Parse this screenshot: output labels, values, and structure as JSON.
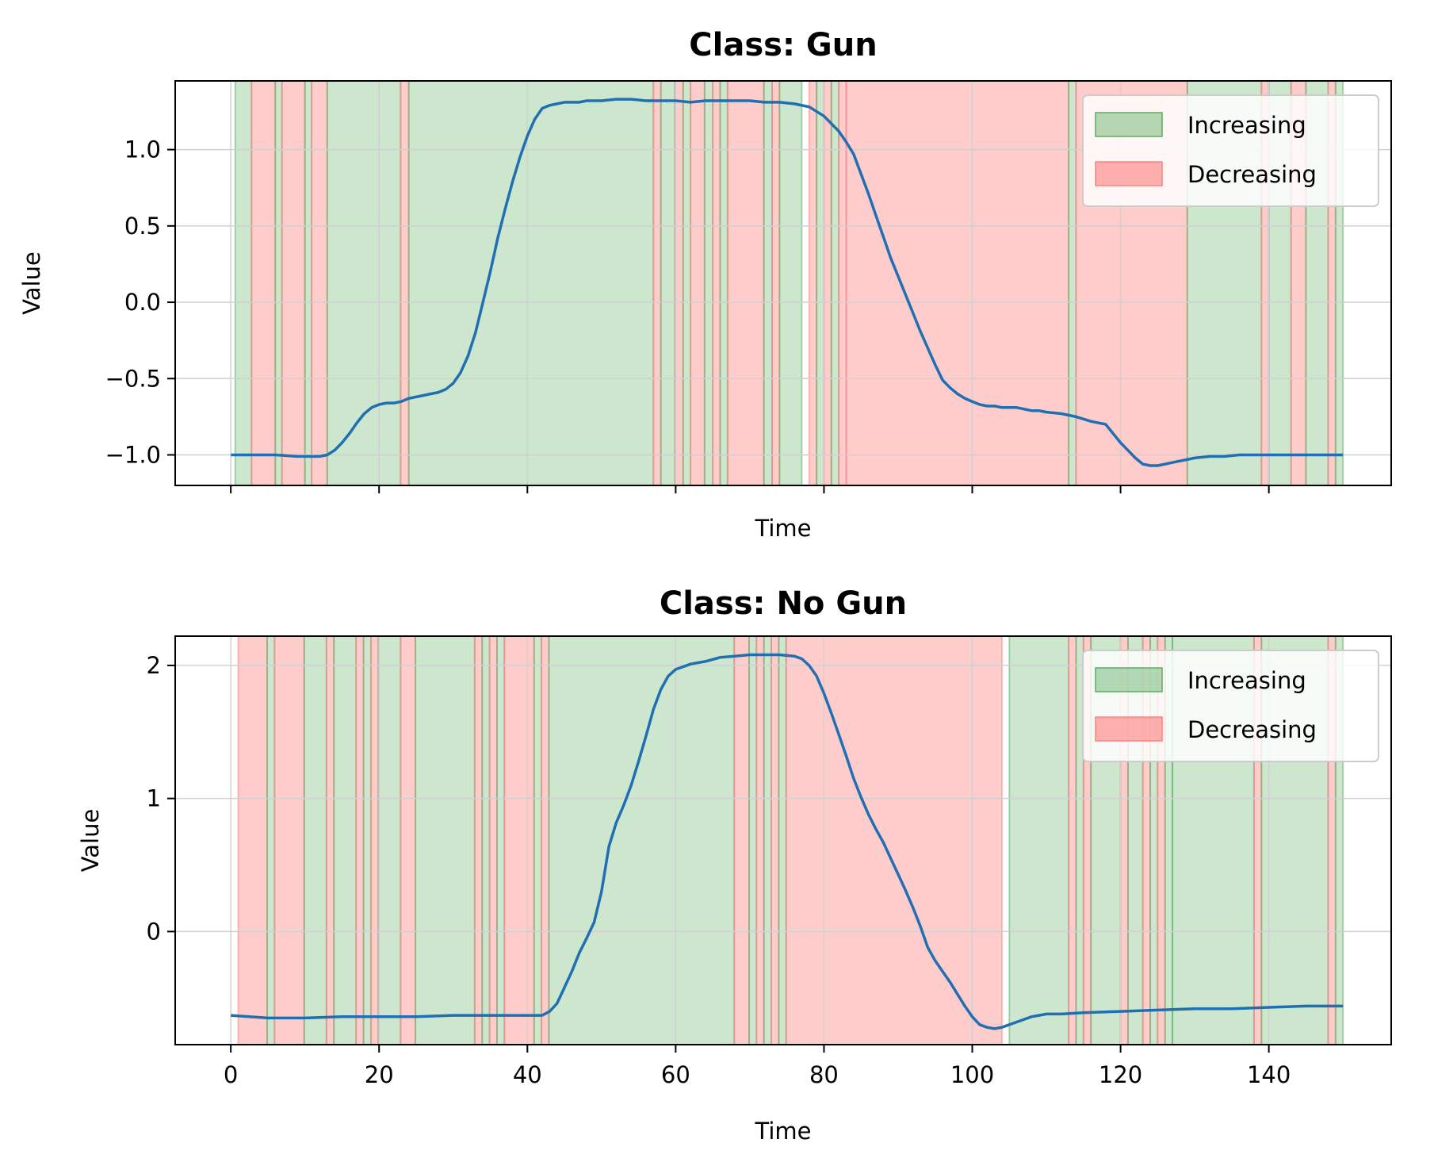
{
  "colors": {
    "increasing": "#5aae61",
    "decreasing": "#ff7f7f",
    "line": "#1f6fb2",
    "grid": "#d0d0d0"
  },
  "chart_data": [
    {
      "type": "line",
      "title": "Class: Gun",
      "xlabel": "Time",
      "ylabel": "Value",
      "xlim": [
        -7.5,
        156.5
      ],
      "ylim": [
        -1.2,
        1.45
      ],
      "xticks": [
        0,
        20,
        40,
        60,
        80,
        100,
        120,
        140
      ],
      "show_xtick_labels": false,
      "yticks": [
        -1.0,
        -0.5,
        0.0,
        0.5,
        1.0
      ],
      "ytick_labels": [
        "−1.0",
        "−0.5",
        "0.0",
        "0.5",
        "1.0"
      ],
      "grid": true,
      "legend": {
        "placement": "top-right",
        "entries": [
          "Increasing",
          "Decreasing"
        ]
      },
      "line": {
        "x": [
          0,
          3,
          6,
          9,
          12,
          13,
          14,
          15,
          16,
          17,
          18,
          19,
          20,
          21,
          22,
          23,
          24,
          25,
          26,
          27,
          28,
          29,
          30,
          31,
          32,
          33,
          34,
          35,
          36,
          37,
          38,
          39,
          40,
          41,
          42,
          43,
          44,
          45,
          46,
          47,
          48,
          49,
          50,
          52,
          54,
          56,
          58,
          60,
          62,
          64,
          66,
          68,
          70,
          72,
          74,
          76,
          78,
          80,
          82,
          83,
          84,
          85,
          86,
          87,
          88,
          89,
          90,
          91,
          92,
          93,
          94,
          95,
          96,
          97,
          98,
          99,
          100,
          101,
          102,
          103,
          104,
          105,
          106,
          107,
          108,
          109,
          110,
          112,
          114,
          116,
          118,
          119,
          120,
          121,
          122,
          123,
          124,
          125,
          126,
          127,
          128,
          129,
          130,
          132,
          134,
          136,
          138,
          140,
          142,
          144,
          146,
          148,
          150
        ],
        "y": [
          -1.0,
          -1.0,
          -1.0,
          -1.01,
          -1.01,
          -1.0,
          -0.97,
          -0.92,
          -0.86,
          -0.79,
          -0.73,
          -0.69,
          -0.67,
          -0.66,
          -0.66,
          -0.65,
          -0.63,
          -0.62,
          -0.61,
          -0.6,
          -0.59,
          -0.57,
          -0.53,
          -0.46,
          -0.35,
          -0.2,
          0.0,
          0.2,
          0.42,
          0.61,
          0.79,
          0.95,
          1.09,
          1.2,
          1.27,
          1.29,
          1.3,
          1.31,
          1.31,
          1.31,
          1.32,
          1.32,
          1.32,
          1.33,
          1.33,
          1.32,
          1.32,
          1.32,
          1.31,
          1.32,
          1.32,
          1.32,
          1.32,
          1.31,
          1.31,
          1.3,
          1.28,
          1.22,
          1.12,
          1.05,
          0.97,
          0.84,
          0.71,
          0.57,
          0.43,
          0.29,
          0.17,
          0.05,
          -0.07,
          -0.19,
          -0.3,
          -0.41,
          -0.51,
          -0.56,
          -0.6,
          -0.63,
          -0.65,
          -0.67,
          -0.68,
          -0.68,
          -0.69,
          -0.69,
          -0.69,
          -0.7,
          -0.71,
          -0.71,
          -0.72,
          -0.73,
          -0.75,
          -0.78,
          -0.8,
          -0.86,
          -0.92,
          -0.97,
          -1.02,
          -1.06,
          -1.07,
          -1.07,
          -1.06,
          -1.05,
          -1.04,
          -1.03,
          -1.02,
          -1.01,
          -1.01,
          -1.0,
          -1.0,
          -1.0,
          -1.0,
          -1.0,
          -1.0,
          -1.0,
          -1.0
        ]
      },
      "regions": [
        {
          "from": 0.6,
          "to": 2.8,
          "trend": "increasing"
        },
        {
          "from": 2.8,
          "to": 6.0,
          "trend": "decreasing"
        },
        {
          "from": 6.0,
          "to": 6.9,
          "trend": "increasing"
        },
        {
          "from": 6.9,
          "to": 10.0,
          "trend": "decreasing"
        },
        {
          "from": 10.0,
          "to": 10.9,
          "trend": "increasing"
        },
        {
          "from": 10.9,
          "to": 13.0,
          "trend": "decreasing"
        },
        {
          "from": 13.0,
          "to": 22.9,
          "trend": "increasing"
        },
        {
          "from": 22.9,
          "to": 24.0,
          "trend": "decreasing"
        },
        {
          "from": 24.0,
          "to": 57.0,
          "trend": "increasing"
        },
        {
          "from": 57.0,
          "to": 58.0,
          "trend": "decreasing"
        },
        {
          "from": 58.0,
          "to": 59.9,
          "trend": "increasing"
        },
        {
          "from": 59.9,
          "to": 61.0,
          "trend": "decreasing"
        },
        {
          "from": 61.0,
          "to": 62.0,
          "trend": "increasing"
        },
        {
          "from": 62.0,
          "to": 63.9,
          "trend": "decreasing"
        },
        {
          "from": 63.9,
          "to": 65.0,
          "trend": "increasing"
        },
        {
          "from": 65.0,
          "to": 66.0,
          "trend": "decreasing"
        },
        {
          "from": 66.0,
          "to": 67.0,
          "trend": "increasing"
        },
        {
          "from": 67.0,
          "to": 71.9,
          "trend": "decreasing"
        },
        {
          "from": 71.9,
          "to": 73.0,
          "trend": "increasing"
        },
        {
          "from": 73.0,
          "to": 74.0,
          "trend": "decreasing"
        },
        {
          "from": 74.0,
          "to": 77.0,
          "trend": "increasing"
        },
        {
          "from": 78.0,
          "to": 79.0,
          "trend": "decreasing"
        },
        {
          "from": 79.0,
          "to": 80.0,
          "trend": "increasing"
        },
        {
          "from": 80.0,
          "to": 81.0,
          "trend": "decreasing"
        },
        {
          "from": 81.0,
          "to": 82.0,
          "trend": "increasing"
        },
        {
          "from": 82.0,
          "to": 83.0,
          "trend": "decreasing"
        },
        {
          "from": 83.0,
          "to": 113.0,
          "trend": "decreasing"
        },
        {
          "from": 113.0,
          "to": 114.0,
          "trend": "increasing"
        },
        {
          "from": 114.0,
          "to": 129.0,
          "trend": "decreasing"
        },
        {
          "from": 129.0,
          "to": 139.0,
          "trend": "increasing"
        },
        {
          "from": 139.0,
          "to": 140.0,
          "trend": "decreasing"
        },
        {
          "from": 140.0,
          "to": 143.0,
          "trend": "increasing"
        },
        {
          "from": 143.0,
          "to": 145.0,
          "trend": "decreasing"
        },
        {
          "from": 145.0,
          "to": 148.0,
          "trend": "increasing"
        },
        {
          "from": 148.0,
          "to": 149.0,
          "trend": "decreasing"
        },
        {
          "from": 149.0,
          "to": 150.0,
          "trend": "increasing"
        }
      ]
    },
    {
      "type": "line",
      "title": "Class: No Gun",
      "xlabel": "Time",
      "ylabel": "Value",
      "xlim": [
        -7.5,
        156.5
      ],
      "ylim": [
        -0.85,
        2.22
      ],
      "xticks": [
        0,
        20,
        40,
        60,
        80,
        100,
        120,
        140
      ],
      "show_xtick_labels": true,
      "xtick_labels": [
        "0",
        "20",
        "40",
        "60",
        "80",
        "100",
        "120",
        "140"
      ],
      "yticks": [
        0,
        1,
        2
      ],
      "ytick_labels": [
        "0",
        "1",
        "2"
      ],
      "grid": true,
      "legend": {
        "placement": "top-right",
        "entries": [
          "Increasing",
          "Decreasing"
        ]
      },
      "line": {
        "x": [
          0,
          5,
          10,
          15,
          20,
          25,
          30,
          35,
          40,
          42,
          43,
          44,
          45,
          46,
          47,
          48,
          49,
          50,
          51,
          52,
          53,
          54,
          55,
          56,
          57,
          58,
          59,
          60,
          61,
          62,
          64,
          66,
          68,
          70,
          72,
          74,
          76,
          77,
          78,
          79,
          80,
          81,
          82,
          83,
          84,
          85,
          86,
          87,
          88,
          89,
          90,
          91,
          92,
          93,
          94,
          95,
          96,
          97,
          98,
          99,
          100,
          101,
          102,
          103,
          104,
          105,
          106,
          107,
          108,
          109,
          110,
          112,
          115,
          120,
          125,
          130,
          135,
          140,
          145,
          150
        ],
        "y": [
          -0.63,
          -0.65,
          -0.65,
          -0.64,
          -0.64,
          -0.64,
          -0.63,
          -0.63,
          -0.63,
          -0.63,
          -0.6,
          -0.54,
          -0.42,
          -0.3,
          -0.16,
          -0.05,
          0.07,
          0.3,
          0.64,
          0.82,
          0.95,
          1.1,
          1.28,
          1.47,
          1.67,
          1.82,
          1.92,
          1.97,
          1.99,
          2.01,
          2.03,
          2.06,
          2.07,
          2.08,
          2.08,
          2.08,
          2.07,
          2.05,
          2.0,
          1.92,
          1.79,
          1.64,
          1.48,
          1.32,
          1.15,
          1.01,
          0.88,
          0.77,
          0.67,
          0.55,
          0.43,
          0.31,
          0.18,
          0.04,
          -0.12,
          -0.22,
          -0.3,
          -0.38,
          -0.47,
          -0.56,
          -0.64,
          -0.7,
          -0.72,
          -0.73,
          -0.72,
          -0.7,
          -0.68,
          -0.66,
          -0.64,
          -0.63,
          -0.62,
          -0.62,
          -0.61,
          -0.6,
          -0.59,
          -0.58,
          -0.58,
          -0.57,
          -0.56,
          -0.56
        ]
      },
      "regions": [
        {
          "from": 1.0,
          "to": 4.9,
          "trend": "decreasing"
        },
        {
          "from": 4.9,
          "to": 5.9,
          "trend": "increasing"
        },
        {
          "from": 5.9,
          "to": 9.9,
          "trend": "decreasing"
        },
        {
          "from": 9.9,
          "to": 12.9,
          "trend": "increasing"
        },
        {
          "from": 12.9,
          "to": 13.9,
          "trend": "decreasing"
        },
        {
          "from": 13.9,
          "to": 16.9,
          "trend": "increasing"
        },
        {
          "from": 16.9,
          "to": 17.9,
          "trend": "decreasing"
        },
        {
          "from": 17.9,
          "to": 18.9,
          "trend": "increasing"
        },
        {
          "from": 18.9,
          "to": 19.9,
          "trend": "decreasing"
        },
        {
          "from": 19.9,
          "to": 22.9,
          "trend": "increasing"
        },
        {
          "from": 22.9,
          "to": 24.9,
          "trend": "decreasing"
        },
        {
          "from": 24.9,
          "to": 32.9,
          "trend": "increasing"
        },
        {
          "from": 32.9,
          "to": 33.9,
          "trend": "decreasing"
        },
        {
          "from": 33.9,
          "to": 34.9,
          "trend": "increasing"
        },
        {
          "from": 34.9,
          "to": 35.9,
          "trend": "decreasing"
        },
        {
          "from": 35.9,
          "to": 36.9,
          "trend": "increasing"
        },
        {
          "from": 36.9,
          "to": 40.9,
          "trend": "decreasing"
        },
        {
          "from": 40.9,
          "to": 41.9,
          "trend": "increasing"
        },
        {
          "from": 41.9,
          "to": 42.9,
          "trend": "decreasing"
        },
        {
          "from": 42.9,
          "to": 67.9,
          "trend": "increasing"
        },
        {
          "from": 67.9,
          "to": 69.9,
          "trend": "decreasing"
        },
        {
          "from": 69.9,
          "to": 70.9,
          "trend": "increasing"
        },
        {
          "from": 70.9,
          "to": 71.9,
          "trend": "decreasing"
        },
        {
          "from": 71.9,
          "to": 72.9,
          "trend": "increasing"
        },
        {
          "from": 72.9,
          "to": 73.9,
          "trend": "decreasing"
        },
        {
          "from": 73.9,
          "to": 74.9,
          "trend": "increasing"
        },
        {
          "from": 74.9,
          "to": 104.0,
          "trend": "decreasing"
        },
        {
          "from": 105.0,
          "to": 113.0,
          "trend": "increasing"
        },
        {
          "from": 113.0,
          "to": 114.0,
          "trend": "decreasing"
        },
        {
          "from": 114.0,
          "to": 115.0,
          "trend": "increasing"
        },
        {
          "from": 115.0,
          "to": 116.0,
          "trend": "decreasing"
        },
        {
          "from": 116.0,
          "to": 120.0,
          "trend": "increasing"
        },
        {
          "from": 120.0,
          "to": 121.0,
          "trend": "decreasing"
        },
        {
          "from": 121.0,
          "to": 123.0,
          "trend": "increasing"
        },
        {
          "from": 123.0,
          "to": 124.0,
          "trend": "decreasing"
        },
        {
          "from": 124.0,
          "to": 125.0,
          "trend": "increasing"
        },
        {
          "from": 125.0,
          "to": 126.0,
          "trend": "decreasing"
        },
        {
          "from": 126.0,
          "to": 127.0,
          "trend": "increasing"
        },
        {
          "from": 127.0,
          "to": 138.0,
          "trend": "increasing"
        },
        {
          "from": 138.0,
          "to": 139.0,
          "trend": "decreasing"
        },
        {
          "from": 139.0,
          "to": 148.0,
          "trend": "increasing"
        },
        {
          "from": 148.0,
          "to": 149.0,
          "trend": "decreasing"
        },
        {
          "from": 149.0,
          "to": 150.0,
          "trend": "increasing"
        }
      ]
    }
  ]
}
